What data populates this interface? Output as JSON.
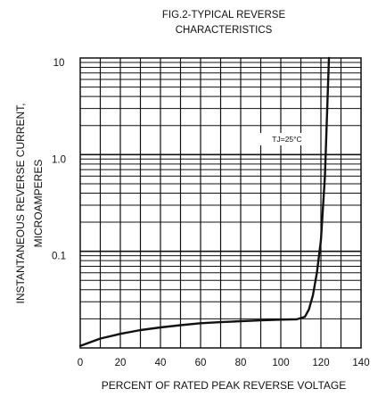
{
  "chart_data": {
    "type": "line",
    "title": [
      "FIG.2-TYPICAL REVERSE",
      "CHARACTERISTICS"
    ],
    "xlabel": "PERCENT OF RATED PEAK REVERSE VOLTAGE",
    "ylabel": [
      "INSTANTANEOUS REVERSE CURRENT,",
      "MICROAMPERES"
    ],
    "x_ticks": [
      "0",
      "20",
      "40",
      "60",
      "80",
      "100",
      "120",
      "140"
    ],
    "y_ticks": [
      "10",
      "1.0",
      "0.1"
    ],
    "xlim": [
      0,
      140
    ],
    "ylim": [
      0.01,
      10
    ],
    "y_scale": "log",
    "grid": true,
    "annotation": "TJ=25°C",
    "series": [
      {
        "x": [
          0,
          10,
          20,
          30,
          40,
          50,
          60,
          70,
          80,
          90,
          100,
          108,
          112,
          114,
          116,
          118,
          120,
          122,
          124
        ],
        "y": [
          0.0105,
          0.0125,
          0.014,
          0.0153,
          0.0163,
          0.0172,
          0.018,
          0.0185,
          0.0189,
          0.0193,
          0.0196,
          0.0198,
          0.021,
          0.025,
          0.035,
          0.06,
          0.13,
          0.6,
          10
        ]
      }
    ]
  }
}
